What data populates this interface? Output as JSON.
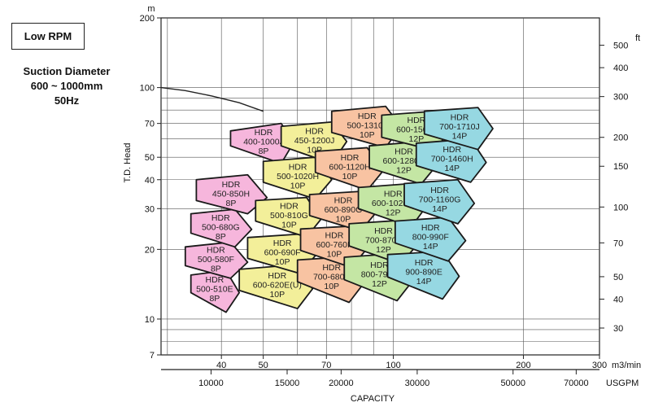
{
  "header": {
    "rpm_label": "Low RPM",
    "suction_label": "Suction Diameter",
    "diameter_range": "600 ~ 1000mm",
    "frequency": "50Hz"
  },
  "colors": {
    "E": "#f2a9d6",
    "F": "#f2ec8a",
    "G": "#f6b98e",
    "H": "#b9e39a",
    "J": "#8fd4de",
    "pink": "#f6b6dc",
    "yellow": "#f3ef9a",
    "orange": "#f8c3a2",
    "green": "#c4e6a4",
    "cyan": "#96d8e2",
    "curve": "#222222",
    "grid": "#555555"
  },
  "chart_data": {
    "type": "area",
    "xlabel": "CAPACITY",
    "ylabel": "T.D. Head",
    "y_unit": "m",
    "y2_unit": "ft",
    "x_unit": "m3/min",
    "x2_unit": "USGPM",
    "log_axes": true,
    "grid": true,
    "xlim": [
      29,
      300
    ],
    "ylim": [
      7,
      200
    ],
    "x_ticks": [
      40,
      50,
      70,
      100,
      200,
      300
    ],
    "y_ticks": [
      7,
      10,
      20,
      30,
      40,
      50,
      70,
      100,
      200
    ],
    "ft_ticks": [
      30,
      40,
      50,
      70,
      100,
      150,
      200,
      300,
      400,
      500
    ],
    "usgpm_ticks": [
      10000,
      15000,
      20000,
      30000,
      50000,
      70000
    ],
    "curve_label": "",
    "limit_curve": [
      [
        29,
        100
      ],
      [
        33,
        97
      ],
      [
        38,
        92
      ],
      [
        44,
        86
      ],
      [
        50,
        79
      ]
    ],
    "pumps": [
      {
        "lines": [
          "HDR",
          "500-510E",
          "8P"
        ],
        "color": "pink",
        "pts": [
          [
            34,
            15.5
          ],
          [
            41,
            16.2
          ],
          [
            44,
            13
          ],
          [
            41,
            10.7
          ],
          [
            34,
            13
          ]
        ]
      },
      {
        "lines": [
          "HDR",
          "500-580F",
          "8P"
        ],
        "color": "pink",
        "pts": [
          [
            33,
            20.5
          ],
          [
            42,
            21.5
          ],
          [
            46,
            17.6
          ],
          [
            42,
            15
          ],
          [
            33,
            17
          ]
        ]
      },
      {
        "lines": [
          "HDR",
          "500-680G",
          "8P"
        ],
        "color": "pink",
        "pts": [
          [
            34,
            28.5
          ],
          [
            43,
            29.8
          ],
          [
            47,
            24.4
          ],
          [
            43,
            20.5
          ],
          [
            34,
            23.5
          ]
        ]
      },
      {
        "lines": [
          "HDR",
          "450-850H",
          "8P"
        ],
        "color": "pink",
        "pts": [
          [
            35,
            40
          ],
          [
            46,
            42
          ],
          [
            51,
            33.5
          ],
          [
            46,
            28.5
          ],
          [
            35,
            32.5
          ]
        ]
      },
      {
        "lines": [
          "HDR",
          "400-1000J",
          "8P"
        ],
        "color": "pink",
        "pts": [
          [
            42,
            65
          ],
          [
            55,
            70
          ],
          [
            59,
            58.5
          ],
          [
            55,
            47
          ],
          [
            42,
            56
          ]
        ]
      },
      {
        "lines": [
          "HDR",
          "600-620E(U)",
          "10P"
        ],
        "color": "yellow",
        "pts": [
          [
            44,
            16.4
          ],
          [
            60,
            17.2
          ],
          [
            65,
            13.5
          ],
          [
            60,
            11.1
          ],
          [
            44,
            13.3
          ]
        ]
      },
      {
        "lines": [
          "HDR",
          "600-690F",
          "10P"
        ],
        "color": "yellow",
        "pts": [
          [
            46,
            22.5
          ],
          [
            61,
            23.3
          ],
          [
            66,
            18.8
          ],
          [
            61,
            15.7
          ],
          [
            46,
            18.3
          ]
        ]
      },
      {
        "lines": [
          "HDR",
          "500-810G",
          "10P"
        ],
        "color": "yellow",
        "pts": [
          [
            48,
            32.5
          ],
          [
            63,
            33.5
          ],
          [
            68,
            27
          ],
          [
            63,
            22.6
          ],
          [
            48,
            26.5
          ]
        ]
      },
      {
        "lines": [
          "HDR",
          "500-1020H",
          "10P"
        ],
        "color": "yellow",
        "pts": [
          [
            50,
            48
          ],
          [
            66,
            50
          ],
          [
            72,
            40
          ],
          [
            66,
            33
          ],
          [
            50,
            39
          ]
        ]
      },
      {
        "lines": [
          "HDR",
          "450-1200J",
          "10P"
        ],
        "color": "yellow",
        "pts": [
          [
            55,
            68
          ],
          [
            72,
            71
          ],
          [
            78,
            58.5
          ],
          [
            72,
            47
          ],
          [
            55,
            56
          ]
        ]
      },
      {
        "lines": [
          "HDR",
          "700-680E",
          "10P"
        ],
        "color": "orange",
        "pts": [
          [
            60,
            18
          ],
          [
            79,
            18.6
          ],
          [
            86,
            14.5
          ],
          [
            79,
            11.8
          ],
          [
            60,
            14.5
          ]
        ]
      },
      {
        "lines": [
          "HDR",
          "600-760F",
          "10P"
        ],
        "color": "orange",
        "pts": [
          [
            61,
            24.5
          ],
          [
            80,
            25.2
          ],
          [
            87,
            20.2
          ],
          [
            80,
            16.7
          ],
          [
            61,
            19.8
          ]
        ]
      },
      {
        "lines": [
          "HDR",
          "600-890G",
          "10P"
        ],
        "color": "orange",
        "pts": [
          [
            64,
            34.5
          ],
          [
            84,
            35.6
          ],
          [
            91,
            28.7
          ],
          [
            84,
            24
          ],
          [
            64,
            28
          ]
        ]
      },
      {
        "lines": [
          "HDR",
          "600-1120H",
          "10P"
        ],
        "color": "orange",
        "pts": [
          [
            66,
            53
          ],
          [
            87,
            55
          ],
          [
            95,
            44
          ],
          [
            87,
            36
          ],
          [
            66,
            43
          ]
        ]
      },
      {
        "lines": [
          "HDR",
          "500-1310J",
          "10P"
        ],
        "color": "orange",
        "pts": [
          [
            72,
            79
          ],
          [
            96,
            83
          ],
          [
            104,
            68
          ],
          [
            96,
            55
          ],
          [
            72,
            64
          ]
        ]
      },
      {
        "lines": [
          "HDR",
          "800-790E",
          "12P"
        ],
        "color": "green",
        "pts": [
          [
            77,
            18.5
          ],
          [
            102,
            19.2
          ],
          [
            112,
            15
          ],
          [
            102,
            12
          ],
          [
            77,
            14.8
          ]
        ]
      },
      {
        "lines": [
          "HDR",
          "700-870F",
          "12P"
        ],
        "color": "green",
        "pts": [
          [
            79,
            25.8
          ],
          [
            104,
            26.7
          ],
          [
            114,
            21.1
          ],
          [
            104,
            17.3
          ],
          [
            79,
            20.7
          ]
        ]
      },
      {
        "lines": [
          "HDR",
          "600-1020G",
          "12P"
        ],
        "color": "green",
        "pts": [
          [
            83,
            37
          ],
          [
            110,
            38.5
          ],
          [
            119,
            30.5
          ],
          [
            110,
            25
          ],
          [
            83,
            30
          ]
        ]
      },
      {
        "lines": [
          "HDR",
          "600-1280H",
          "12P"
        ],
        "color": "green",
        "pts": [
          [
            88,
            56
          ],
          [
            116,
            58.5
          ],
          [
            127,
            47
          ],
          [
            116,
            38.3
          ],
          [
            88,
            45
          ]
        ]
      },
      {
        "lines": [
          "HDR",
          "600-1500J",
          "12P"
        ],
        "color": "green",
        "pts": [
          [
            94,
            76
          ],
          [
            124,
            79
          ],
          [
            136,
            65.5
          ],
          [
            124,
            53.5
          ],
          [
            94,
            61
          ]
        ]
      },
      {
        "lines": [
          "HDR",
          "900-890E",
          "14P"
        ],
        "color": "cyan",
        "pts": [
          [
            97,
            19
          ],
          [
            130,
            19.6
          ],
          [
            142,
            15.3
          ],
          [
            130,
            12.2
          ],
          [
            97,
            15.2
          ]
        ]
      },
      {
        "lines": [
          "HDR",
          "800-990F",
          "14P"
        ],
        "color": "cyan",
        "pts": [
          [
            101,
            26.5
          ],
          [
            134,
            27.5
          ],
          [
            147,
            21.8
          ],
          [
            134,
            17.8
          ],
          [
            101,
            21.3
          ]
        ]
      },
      {
        "lines": [
          "HDR",
          "700-1160G",
          "14P"
        ],
        "color": "cyan",
        "pts": [
          [
            106,
            38.5
          ],
          [
            141,
            40
          ],
          [
            154,
            31.6
          ],
          [
            141,
            25.8
          ],
          [
            106,
            31
          ]
        ]
      },
      {
        "lines": [
          "HDR",
          "700-1460H",
          "14P"
        ],
        "color": "cyan",
        "pts": [
          [
            113,
            57.5
          ],
          [
            151,
            60
          ],
          [
            164,
            47.5
          ],
          [
            151,
            39
          ],
          [
            113,
            46
          ]
        ]
      },
      {
        "lines": [
          "HDR",
          "700-1710J",
          "14P"
        ],
        "color": "cyan",
        "pts": [
          [
            118,
            79
          ],
          [
            157,
            82
          ],
          [
            170,
            66.5
          ],
          [
            157,
            54
          ],
          [
            118,
            63
          ]
        ]
      }
    ]
  }
}
